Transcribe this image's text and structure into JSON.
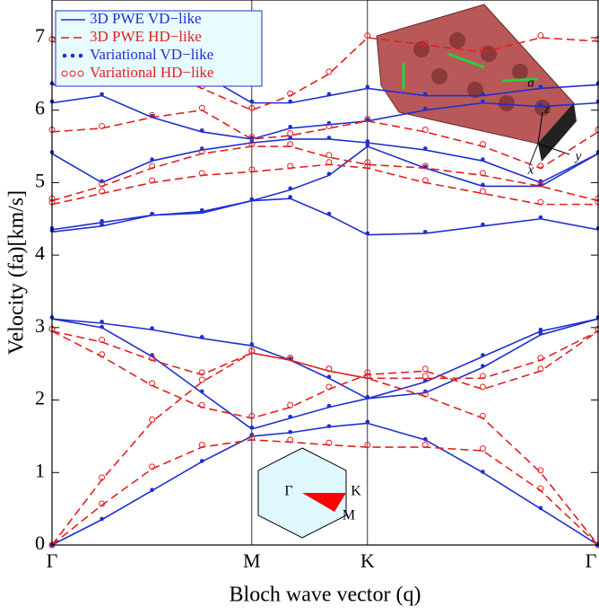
{
  "chart_data": {
    "type": "band",
    "xlabel": "Bloch wave vector (q)",
    "ylabel": "Velocity (fa)[km/s]",
    "x": [
      0,
      0.144,
      0.289,
      0.433,
      0.577,
      0.688,
      0.8,
      0.911,
      1.078,
      1.244,
      1.411,
      1.577
    ],
    "xlim": [
      0,
      1.577
    ],
    "xticks": [
      {
        "value": 0,
        "label": "Γ"
      },
      {
        "value": 0.577,
        "label": "M"
      },
      {
        "value": 0.911,
        "label": "K"
      },
      {
        "value": 1.577,
        "label": "Γ"
      }
    ],
    "ylim": [
      0,
      7.52
    ],
    "yticks": [
      0,
      1,
      2,
      3,
      4,
      5,
      6,
      7
    ],
    "series": [
      {
        "name": "3D PWE VD−like",
        "color": "#1f2fd0",
        "style": "solid",
        "bands": [
          [
            0,
            0.35,
            0.75,
            1.15,
            1.5,
            1.55,
            1.63,
            1.68,
            1.45,
            1.0,
            0.5,
            0
          ],
          [
            3.12,
            3.0,
            2.6,
            2.1,
            1.6,
            1.75,
            1.9,
            2.02,
            2.25,
            2.6,
            2.95,
            3.12
          ],
          [
            3.12,
            3.06,
            2.97,
            2.85,
            2.75,
            2.55,
            2.3,
            2.02,
            2.1,
            2.45,
            2.9,
            3.12
          ],
          [
            4.32,
            4.4,
            4.55,
            4.6,
            4.75,
            4.78,
            4.55,
            4.28,
            4.3,
            4.4,
            4.5,
            4.35
          ],
          [
            4.35,
            4.45,
            4.55,
            4.58,
            4.75,
            4.9,
            5.1,
            5.5,
            5.2,
            4.95,
            4.95,
            5.4
          ],
          [
            5.4,
            5.0,
            5.3,
            5.45,
            5.55,
            5.6,
            5.6,
            5.55,
            5.45,
            5.3,
            5.0,
            5.4
          ],
          [
            6.1,
            6.2,
            5.9,
            5.7,
            5.6,
            5.75,
            5.8,
            5.85,
            6.0,
            6.1,
            6.05,
            6.1
          ],
          [
            6.35,
            6.35,
            6.4,
            6.5,
            6.1,
            6.1,
            6.2,
            6.3,
            6.2,
            6.2,
            6.3,
            6.35
          ]
        ]
      },
      {
        "name": "3D PWE HD−like",
        "color": "#e02020",
        "style": "dashed",
        "bands": [
          [
            0,
            0.55,
            1.05,
            1.35,
            1.45,
            1.42,
            1.38,
            1.35,
            1.35,
            1.3,
            0.75,
            0
          ],
          [
            0,
            0.9,
            1.7,
            2.25,
            2.65,
            2.55,
            2.4,
            2.3,
            2.05,
            1.75,
            1.0,
            0
          ],
          [
            2.95,
            2.6,
            2.2,
            1.9,
            1.75,
            1.9,
            2.15,
            2.35,
            2.4,
            2.15,
            2.4,
            2.95
          ],
          [
            2.95,
            2.8,
            2.55,
            2.35,
            2.65,
            2.55,
            2.4,
            2.3,
            2.3,
            2.3,
            2.55,
            2.95
          ],
          [
            4.7,
            4.85,
            5.0,
            5.1,
            5.15,
            5.2,
            5.25,
            5.2,
            5.0,
            4.85,
            4.7,
            4.7
          ],
          [
            4.75,
            4.95,
            5.2,
            5.4,
            5.5,
            5.5,
            5.35,
            5.25,
            5.2,
            5.1,
            4.95,
            4.75
          ],
          [
            5.7,
            5.75,
            5.9,
            6.0,
            5.6,
            5.65,
            5.75,
            5.85,
            5.7,
            5.5,
            5.2,
            5.7
          ],
          [
            6.95,
            6.8,
            6.6,
            6.3,
            6.0,
            6.2,
            6.5,
            7.0,
            6.9,
            6.8,
            7.0,
            6.95
          ]
        ]
      },
      {
        "name": "Variational VD−like",
        "color": "#1f2fd0",
        "style": "dots",
        "bands": [
          [
            0,
            0.36,
            0.76,
            1.16,
            1.52,
            1.56,
            1.64,
            1.7,
            1.46,
            1.01,
            0.51,
            0
          ],
          [
            3.14,
            3.01,
            2.62,
            2.12,
            1.62,
            1.77,
            1.92,
            2.04,
            2.27,
            2.62,
            2.97,
            3.14
          ],
          [
            3.14,
            3.08,
            2.99,
            2.87,
            2.77,
            2.57,
            2.32,
            2.04,
            2.12,
            2.47,
            2.92,
            3.14
          ],
          [
            4.34,
            4.42,
            4.57,
            4.62,
            4.77,
            4.8,
            4.57,
            4.3,
            4.32,
            4.42,
            4.52,
            4.37
          ],
          [
            4.37,
            4.47,
            4.57,
            4.6,
            4.77,
            4.92,
            5.12,
            5.52,
            5.22,
            4.97,
            4.97,
            5.42
          ],
          [
            5.42,
            5.02,
            5.32,
            5.47,
            5.57,
            5.62,
            5.62,
            5.57,
            5.47,
            5.32,
            5.02,
            5.42
          ],
          [
            6.12,
            6.22,
            5.92,
            5.72,
            5.62,
            5.77,
            5.82,
            5.87,
            6.02,
            6.12,
            6.07,
            6.12
          ],
          [
            6.37,
            6.37,
            6.42,
            6.52,
            6.12,
            6.12,
            6.22,
            6.32,
            6.22,
            6.22,
            6.32,
            6.37
          ]
        ]
      },
      {
        "name": "Variational HD−like",
        "color": "#e02020",
        "style": "circles",
        "bands": [
          [
            0,
            0.57,
            1.08,
            1.38,
            1.48,
            1.45,
            1.41,
            1.38,
            1.38,
            1.33,
            0.78,
            0
          ],
          [
            0,
            0.93,
            1.73,
            2.28,
            2.68,
            2.58,
            2.43,
            2.33,
            2.08,
            1.78,
            1.03,
            0
          ],
          [
            2.98,
            2.63,
            2.23,
            1.93,
            1.78,
            1.93,
            2.18,
            2.38,
            2.43,
            2.18,
            2.43,
            2.98
          ],
          [
            2.98,
            2.83,
            2.58,
            2.38,
            2.68,
            2.58,
            2.43,
            2.33,
            2.33,
            2.33,
            2.58,
            2.98
          ],
          [
            4.73,
            4.88,
            5.03,
            5.13,
            5.18,
            5.23,
            5.28,
            5.23,
            5.03,
            4.88,
            4.73,
            4.73
          ],
          [
            4.78,
            4.98,
            5.23,
            5.43,
            5.53,
            5.53,
            5.38,
            5.28,
            5.23,
            5.13,
            4.98,
            4.78
          ],
          [
            5.73,
            5.78,
            5.93,
            6.03,
            5.63,
            5.68,
            5.78,
            5.88,
            5.73,
            5.53,
            5.23,
            5.73
          ],
          [
            6.98,
            6.83,
            6.63,
            6.33,
            6.03,
            6.23,
            6.53,
            7.03,
            6.93,
            6.83,
            7.03,
            6.98
          ]
        ]
      }
    ],
    "inset_labels": [
      "Γ",
      "K",
      "M"
    ],
    "slab_labels": [
      "a",
      "x",
      "y",
      "z"
    ]
  }
}
